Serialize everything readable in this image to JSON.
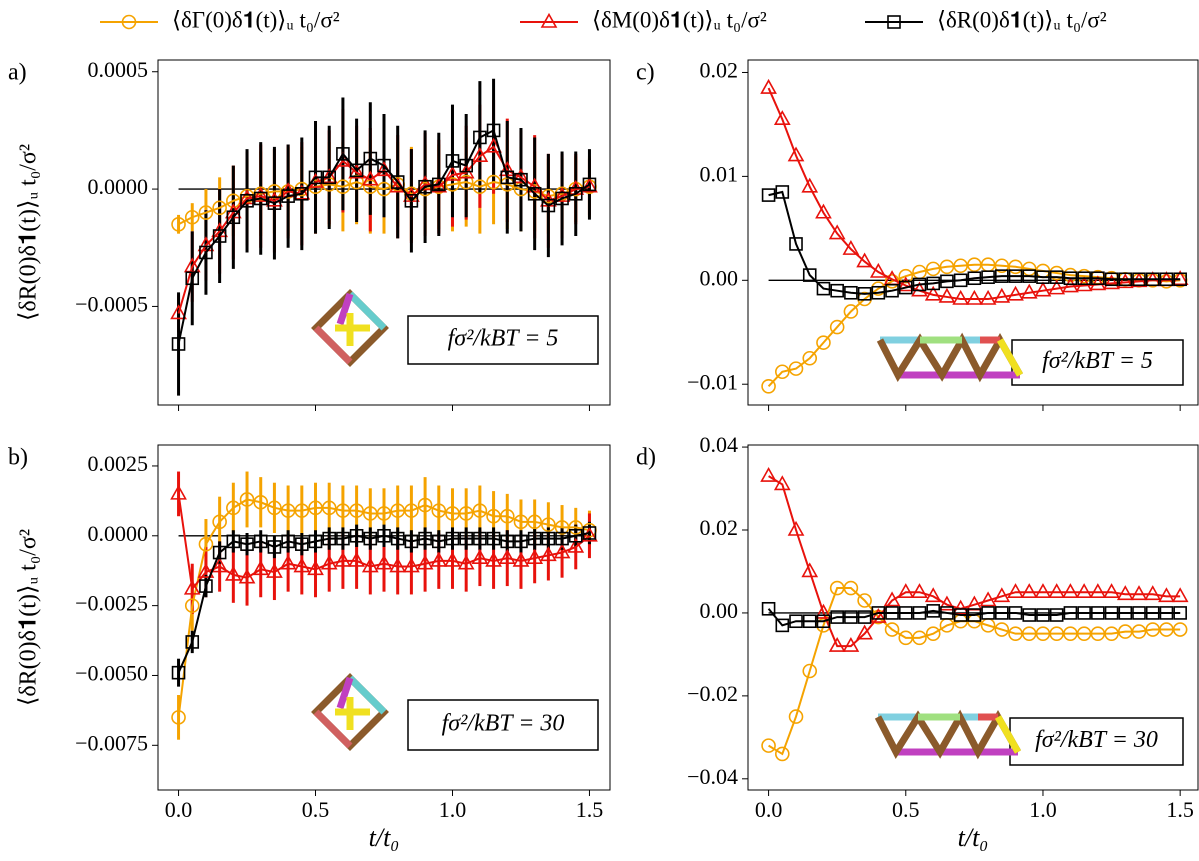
{
  "chart_data": [
    {
      "type": "line",
      "panel_label": "a)",
      "y_label": "⟨δR(0)δ𝟏(t)⟩ᵤ t₀/σ²",
      "annotation": "fσ²/kBT = 5",
      "xlim": [
        -0.075,
        1.575
      ],
      "xticks": [
        0,
        0.5,
        1,
        1.5
      ],
      "ylim": [
        -0.00092,
        0.00055
      ],
      "yticks": [
        {
          "value": -0.0005,
          "label": "−0.0005"
        },
        {
          "value": 0,
          "label": "0.0000"
        },
        {
          "value": 0.0005,
          "label": "0.0005"
        }
      ],
      "x": [
        0,
        0.05,
        0.1,
        0.15,
        0.2,
        0.25,
        0.3,
        0.35,
        0.4,
        0.45,
        0.5,
        0.55,
        0.6,
        0.65,
        0.7,
        0.75,
        0.8,
        0.85,
        0.9,
        0.95,
        1,
        1.05,
        1.1,
        1.15,
        1.2,
        1.25,
        1.3,
        1.35,
        1.4,
        1.45,
        1.5
      ],
      "series": [
        {
          "name": "⟨δΓ(0)δ𝟏(t)⟩ᵤ t₀/σ²",
          "color": "#f5a300",
          "marker": "circle",
          "values": [
            -0.00015,
            -0.00012,
            -0.0001,
            -8e-05,
            -5e-05,
            -3e-05,
            -2e-05,
            -1e-05,
            -1e-05,
            0,
            1e-05,
            2e-05,
            1e-05,
            3e-05,
            1e-05,
            0,
            2e-05,
            -2e-05,
            0,
            1e-05,
            2e-05,
            3e-05,
            1e-05,
            3e-05,
            2e-05,
            0,
            -1e-05,
            -3e-05,
            -2e-05,
            0,
            1e-05
          ],
          "errors": [
            4e-05,
            6e-05,
            0.0001,
            0.00013,
            0.00015,
            0.00016,
            0.00018,
            0.00018,
            0.00019,
            0.00018,
            0.0002,
            0.00018,
            0.00019,
            0.00018,
            0.0002,
            0.00019,
            0.00018,
            0.0002,
            0.00019,
            0.00018,
            0.0002,
            0.00019,
            0.0002,
            0.00018,
            0.00019,
            0.00018,
            0.00017,
            0.00016,
            0.00015,
            0.00014,
            0.00013
          ]
        },
        {
          "name": "⟨δM(0)δ𝟏(t)⟩ᵤ t₀/σ²",
          "color": "#e8120c",
          "marker": "triangle",
          "values": [
            -0.00053,
            -0.00033,
            -0.00024,
            -0.00018,
            -0.0001,
            -4e-05,
            -3e-05,
            -5e-05,
            -1e-05,
            -2e-05,
            3e-05,
            5e-05,
            0.00012,
            7e-05,
            4e-05,
            8e-05,
            1e-05,
            -3e-05,
            2e-05,
            1e-05,
            6e-05,
            7e-05,
            0.00014,
            0.00018,
            8e-05,
            5e-05,
            1e-05,
            -5e-05,
            -3e-05,
            0,
            1e-05
          ],
          "errors": [
            8e-05,
            0.00015,
            0.00015,
            0.00018,
            0.0002,
            0.0002,
            0.00022,
            0.00022,
            0.0002,
            0.00022,
            0.00022,
            0.0002,
            0.00022,
            0.0002,
            0.00022,
            0.0002,
            0.00022,
            0.0002,
            0.00022,
            0.0002,
            0.00022,
            0.0002,
            0.00022,
            0.0002,
            0.00022,
            0.0002,
            0.00022,
            0.0002,
            0.00018,
            0.00015,
            0.00012
          ]
        },
        {
          "name": "⟨δR(0)δ𝟏(t)⟩ᵤ t₀/σ²",
          "color": "#000000",
          "marker": "square",
          "values": [
            -0.00066,
            -0.00038,
            -0.00027,
            -0.0002,
            -0.00012,
            -5e-05,
            -4e-05,
            -6e-05,
            -3e-05,
            -2e-05,
            5e-05,
            5e-05,
            0.00015,
            8e-05,
            0.00013,
            0.0001,
            3e-05,
            -5e-05,
            1e-05,
            2e-05,
            0.00012,
            0.0001,
            0.00022,
            0.00025,
            5e-05,
            4e-05,
            -2e-05,
            -7e-05,
            -4e-05,
            -2e-05,
            2e-05
          ],
          "errors": [
            0.00022,
            0.0002,
            0.00018,
            0.0002,
            0.00022,
            0.00022,
            0.00024,
            0.00024,
            0.00022,
            0.00024,
            0.00024,
            0.00022,
            0.00024,
            0.00022,
            0.00024,
            0.00022,
            0.00024,
            0.00022,
            0.00024,
            0.00022,
            0.00024,
            0.00022,
            0.00024,
            0.00022,
            0.00024,
            0.00022,
            0.00024,
            0.00022,
            0.0002,
            0.00018,
            0.00015
          ]
        }
      ]
    },
    {
      "type": "line",
      "panel_label": "b)",
      "y_label": "⟨δR(0)δ𝟏(t)⟩ᵤ t₀/σ²",
      "annotation": "fσ²/kBT = 30",
      "x_label": "t/t₀",
      "xlim": [
        -0.075,
        1.575
      ],
      "xticks": [
        {
          "value": 0,
          "label": "0.0"
        },
        {
          "value": 0.5,
          "label": "0.5"
        },
        {
          "value": 1,
          "label": "1.0"
        },
        {
          "value": 1.5,
          "label": "1.5"
        }
      ],
      "ylim": [
        -0.0091,
        0.00325
      ],
      "yticks": [
        {
          "value": -0.0075,
          "label": "−0.0075"
        },
        {
          "value": -0.005,
          "label": "−0.0050"
        },
        {
          "value": -0.0025,
          "label": "−0.0025"
        },
        {
          "value": 0,
          "label": "0.0000"
        },
        {
          "value": 0.0025,
          "label": "0.0025"
        }
      ],
      "x": [
        0,
        0.05,
        0.1,
        0.15,
        0.2,
        0.25,
        0.3,
        0.35,
        0.4,
        0.45,
        0.5,
        0.55,
        0.6,
        0.65,
        0.7,
        0.75,
        0.8,
        0.85,
        0.9,
        0.95,
        1,
        1.05,
        1.1,
        1.15,
        1.2,
        1.25,
        1.3,
        1.35,
        1.4,
        1.45,
        1.5
      ],
      "series": [
        {
          "color": "#f5a300",
          "marker": "circle",
          "values": [
            -0.0065,
            -0.0025,
            -0.0003,
            0.0005,
            0.001,
            0.0013,
            0.0012,
            0.001,
            0.0009,
            0.0009,
            0.001,
            0.001,
            0.0009,
            0.0009,
            0.0008,
            0.0008,
            0.0009,
            0.0009,
            0.0011,
            0.0009,
            0.0008,
            0.0008,
            0.0009,
            0.0007,
            0.0007,
            0.0005,
            0.0005,
            0.0004,
            0.0003,
            0.0003,
            0.0002
          ],
          "errors": [
            0.0008,
            0.0009,
            0.0009,
            0.0009,
            0.0009,
            0.001,
            0.0009,
            0.0009,
            0.0009,
            0.0009,
            0.0009,
            0.0009,
            0.0009,
            0.0009,
            0.0009,
            0.0009,
            0.0009,
            0.0009,
            0.001,
            0.0009,
            0.0009,
            0.0009,
            0.0009,
            0.0009,
            0.0008,
            0.0008,
            0.0008,
            0.0008,
            0.0008,
            0.0007,
            0.0007
          ]
        },
        {
          "color": "#e8120c",
          "marker": "triangle",
          "values": [
            0.0015,
            -0.0019,
            -0.0013,
            -0.0011,
            -0.0014,
            -0.0015,
            -0.0012,
            -0.0013,
            -0.001,
            -0.0011,
            -0.0012,
            -0.001,
            -0.0009,
            -0.0009,
            -0.0011,
            -0.001,
            -0.0011,
            -0.0011,
            -0.001,
            -0.0009,
            -0.0009,
            -0.001,
            -0.0008,
            -0.0009,
            -0.0008,
            -0.0009,
            -0.0008,
            -0.0007,
            -0.0006,
            -0.0004,
            0
          ],
          "errors": [
            0.0008,
            0.0009,
            0.0009,
            0.0009,
            0.001,
            0.001,
            0.001,
            0.001,
            0.001,
            0.001,
            0.001,
            0.001,
            0.001,
            0.001,
            0.001,
            0.001,
            0.001,
            0.001,
            0.001,
            0.001,
            0.001,
            0.001,
            0.001,
            0.001,
            0.001,
            0.001,
            0.0009,
            0.0009,
            0.0009,
            0.0008,
            0.0008
          ]
        },
        {
          "color": "#000000",
          "marker": "square",
          "values": [
            -0.0049,
            -0.0038,
            -0.0018,
            -0.0006,
            -0.0002,
            -0.0003,
            -0.0002,
            -0.0004,
            -0.0002,
            -0.0003,
            -0.0002,
            -0.0001,
            -0.0001,
            0,
            -0.0001,
            0,
            -0.0001,
            -0.0002,
            -0.0001,
            -0.0002,
            -0.0001,
            -0.0001,
            -0.0001,
            -0.0001,
            -0.0002,
            -0.0002,
            -0.0001,
            -0.0001,
            -0.0001,
            0,
            0.0001
          ],
          "errors": [
            0.0005,
            0.0004,
            0.0004,
            0.0004,
            0.0004,
            0.0004,
            0.0004,
            0.0004,
            0.0004,
            0.0004,
            0.0004,
            0.0004,
            0.0004,
            0.0004,
            0.0004,
            0.0004,
            0.0004,
            0.0004,
            0.0004,
            0.0004,
            0.0004,
            0.0004,
            0.0004,
            0.0004,
            0.0004,
            0.0004,
            0.0004,
            0.0004,
            0.0004,
            0.0004,
            0.0004
          ]
        }
      ]
    },
    {
      "type": "line",
      "panel_label": "c)",
      "annotation": "fσ²/kBT = 5",
      "xlim": [
        -0.075,
        1.565
      ],
      "xticks": [
        0,
        0.5,
        1,
        1.5
      ],
      "ylim": [
        -0.012,
        0.0212
      ],
      "yticks": [
        {
          "value": -0.01,
          "label": "−0.01"
        },
        {
          "value": 0,
          "label": "0.00"
        },
        {
          "value": 0.01,
          "label": "0.01"
        },
        {
          "value": 0.02,
          "label": "0.02"
        }
      ],
      "x": [
        0,
        0.05,
        0.1,
        0.15,
        0.2,
        0.25,
        0.3,
        0.35,
        0.4,
        0.45,
        0.5,
        0.55,
        0.6,
        0.65,
        0.7,
        0.75,
        0.8,
        0.85,
        0.9,
        0.95,
        1,
        1.05,
        1.1,
        1.15,
        1.2,
        1.25,
        1.3,
        1.35,
        1.4,
        1.45,
        1.5
      ],
      "series": [
        {
          "color": "#f5a300",
          "marker": "circle",
          "values": [
            -0.0102,
            -0.0088,
            -0.0085,
            -0.0075,
            -0.006,
            -0.0045,
            -0.003,
            -0.0018,
            -0.0008,
            -0.0001,
            0.0004,
            0.0008,
            0.0011,
            0.0013,
            0.0014,
            0.0015,
            0.0015,
            0.0014,
            0.0013,
            0.0011,
            0.0009,
            0.0007,
            0.0005,
            0.0004,
            0.0003,
            0.0002,
            0.0001,
            0,
            0,
            -0.0001,
            0
          ]
        },
        {
          "color": "#e8120c",
          "marker": "triangle",
          "values": [
            0.0185,
            0.0155,
            0.012,
            0.009,
            0.0065,
            0.0045,
            0.003,
            0.0018,
            0.0008,
            0.0001,
            -0.0005,
            -0.001,
            -0.0014,
            -0.0016,
            -0.0018,
            -0.0018,
            -0.0018,
            -0.0016,
            -0.0014,
            -0.0012,
            -0.001,
            -0.0008,
            -0.0006,
            -0.0005,
            -0.0004,
            -0.0003,
            -0.0002,
            -0.0001,
            0,
            0,
            0.0001
          ]
        },
        {
          "color": "#000000",
          "marker": "square",
          "values": [
            0.0082,
            0.0085,
            0.0035,
            0.0005,
            -0.0008,
            -0.001,
            -0.0012,
            -0.0013,
            -0.0012,
            -0.001,
            -0.0007,
            -0.0004,
            -0.0003,
            -0.0001,
            0,
            0.0002,
            0.0003,
            0.0004,
            0.0004,
            0.0004,
            0.0003,
            0.0003,
            0.0002,
            0.0002,
            0.0002,
            0.0001,
            0.0001,
            0.0001,
            0.0001,
            0.0001,
            0.0001
          ]
        }
      ]
    },
    {
      "type": "line",
      "panel_label": "d)",
      "annotation": "fσ²/kBT = 30",
      "x_label": "t/t₀",
      "xlim": [
        -0.075,
        1.565
      ],
      "xticks": [
        {
          "value": 0,
          "label": "0.0"
        },
        {
          "value": 0.5,
          "label": "0.5"
        },
        {
          "value": 1,
          "label": "1.0"
        },
        {
          "value": 1.5,
          "label": "1.5"
        }
      ],
      "ylim": [
        -0.0427,
        0.0405
      ],
      "yticks": [
        {
          "value": -0.04,
          "label": "−0.04"
        },
        {
          "value": -0.02,
          "label": "−0.02"
        },
        {
          "value": 0,
          "label": "0.00"
        },
        {
          "value": 0.02,
          "label": "0.02"
        },
        {
          "value": 0.04,
          "label": "0.04"
        }
      ],
      "x": [
        0,
        0.05,
        0.1,
        0.15,
        0.2,
        0.25,
        0.3,
        0.35,
        0.4,
        0.45,
        0.5,
        0.55,
        0.6,
        0.65,
        0.7,
        0.75,
        0.8,
        0.85,
        0.9,
        0.95,
        1,
        1.05,
        1.1,
        1.15,
        1.2,
        1.25,
        1.3,
        1.35,
        1.4,
        1.45,
        1.5
      ],
      "series": [
        {
          "color": "#f5a300",
          "marker": "circle",
          "values": [
            -0.032,
            -0.034,
            -0.025,
            -0.014,
            -0.003,
            0.006,
            0.006,
            0.003,
            -0.001,
            -0.004,
            -0.006,
            -0.006,
            -0.005,
            -0.003,
            -0.002,
            -0.002,
            -0.003,
            -0.004,
            -0.005,
            -0.005,
            -0.005,
            -0.005,
            -0.005,
            -0.005,
            -0.005,
            -0.005,
            -0.0045,
            -0.0045,
            -0.004,
            -0.004,
            -0.004
          ]
        },
        {
          "color": "#e8120c",
          "marker": "triangle",
          "values": [
            0.033,
            0.031,
            0.02,
            0.01,
            0,
            -0.008,
            -0.008,
            -0.005,
            -0.001,
            0.003,
            0.005,
            0.005,
            0.004,
            0.002,
            0.001,
            0.002,
            0.003,
            0.004,
            0.005,
            0.005,
            0.005,
            0.005,
            0.005,
            0.005,
            0.005,
            0.005,
            0.0045,
            0.0045,
            0.0045,
            0.004,
            0.004
          ]
        },
        {
          "color": "#000000",
          "marker": "square",
          "values": [
            0.001,
            -0.003,
            -0.002,
            -0.002,
            -0.002,
            -0.001,
            -0.001,
            -0.001,
            0,
            0,
            0,
            0,
            0.0005,
            0,
            -0.0005,
            -0.0005,
            0,
            0,
            0,
            -0.0005,
            -0.0005,
            -0.0005,
            0,
            0,
            0,
            0,
            0,
            0,
            0,
            0,
            0
          ]
        }
      ]
    }
  ]
}
